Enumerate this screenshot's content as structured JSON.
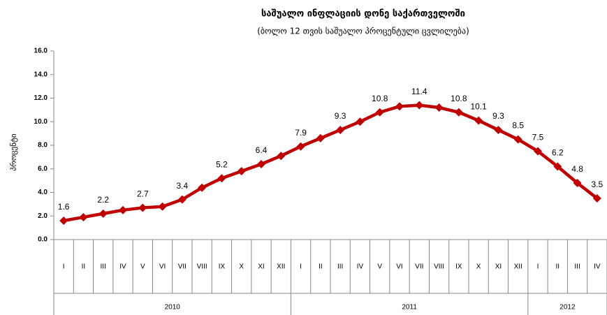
{
  "chart_data": {
    "type": "line",
    "title": "საშუალო ინფლაციის დონე საქართველოში",
    "subtitle": "(ბოლო 12 თვის საშუალო პროცენტული ცვლილება)",
    "y_label": "პროცენტი",
    "categories": [
      "I",
      "II",
      "III",
      "IV",
      "V",
      "VI",
      "VII",
      "VIII",
      "IX",
      "X",
      "XI",
      "XII",
      "I",
      "II",
      "III",
      "IV",
      "V",
      "VI",
      "VII",
      "VIII",
      "IX",
      "X",
      "XI",
      "XII",
      "I",
      "II",
      "III",
      "IV"
    ],
    "groups": [
      "2010",
      "2011",
      "2012"
    ],
    "series": [
      {
        "name": "საშუალო ინფლაცია",
        "color": "#c00000",
        "values": [
          1.6,
          1.9,
          2.2,
          2.5,
          2.7,
          2.8,
          3.4,
          4.4,
          5.2,
          5.8,
          6.4,
          7.1,
          7.9,
          8.6,
          9.3,
          10.0,
          10.8,
          11.3,
          11.4,
          11.2,
          10.8,
          10.1,
          9.3,
          8.5,
          7.5,
          6.2,
          4.8,
          3.5
        ],
        "value_labels": [
          "1.6",
          null,
          "2.2",
          null,
          "2.7",
          null,
          "3.4",
          null,
          "5.2",
          null,
          "6.4",
          null,
          "7.9",
          null,
          "9.3",
          null,
          "10.8",
          null,
          "11.4",
          null,
          "10.8",
          "10.1",
          "9.3",
          "8.5",
          "7.5",
          "6.2",
          "4.8",
          "3.5"
        ]
      }
    ],
    "ylim": [
      0,
      16
    ],
    "yticks": [
      {
        "value": 0,
        "label": "0.0"
      },
      {
        "value": 2,
        "label": "2.0"
      },
      {
        "value": 4,
        "label": "4.0"
      },
      {
        "value": 6,
        "label": "6.0"
      },
      {
        "value": 8,
        "label": "8.0"
      },
      {
        "value": 10,
        "label": "10.0"
      },
      {
        "value": 12,
        "label": "12.0"
      },
      {
        "value": 14,
        "label": "14.0"
      },
      {
        "value": 16,
        "label": "16.0"
      }
    ],
    "grid": false
  }
}
